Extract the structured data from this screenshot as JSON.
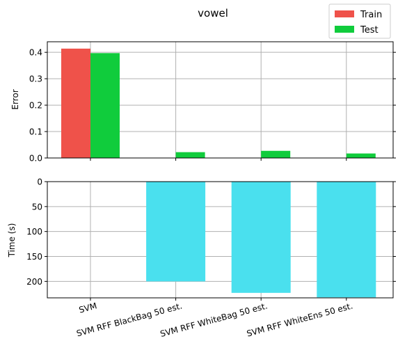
{
  "chart_data": [
    {
      "type": "bar",
      "title": "vowel",
      "ylabel": "Error",
      "categories": [
        "SVM",
        "SVM RFF BlackBag 50 est.",
        "SVM RFF WhiteBag 50 est.",
        "SVM RFF WhiteEns 50 est."
      ],
      "ylim": [
        0,
        0.44
      ],
      "yticks": [
        "0.0",
        "0.1",
        "0.2",
        "0.3",
        "0.4"
      ],
      "grid": true,
      "legend_position": "top-right",
      "series": [
        {
          "name": "Train",
          "color": "#ef524a",
          "values": [
            0.414,
            0.0,
            0.0,
            0.0
          ]
        },
        {
          "name": "Test",
          "color": "#10cc3c",
          "values": [
            0.397,
            0.022,
            0.027,
            0.017
          ]
        }
      ]
    },
    {
      "type": "bar",
      "ylabel": "Time (s)",
      "categories": [
        "SVM",
        "SVM RFF BlackBag 50 est.",
        "SVM RFF WhiteBag 50 est.",
        "SVM RFF WhiteEns 50 est."
      ],
      "ylim": [
        0,
        233
      ],
      "yaxis_inverted": true,
      "yticks": [
        "0",
        "50",
        "100",
        "150",
        "200"
      ],
      "grid": true,
      "color": "#4ae0ee",
      "values": [
        0.5,
        200,
        223,
        232
      ]
    }
  ]
}
